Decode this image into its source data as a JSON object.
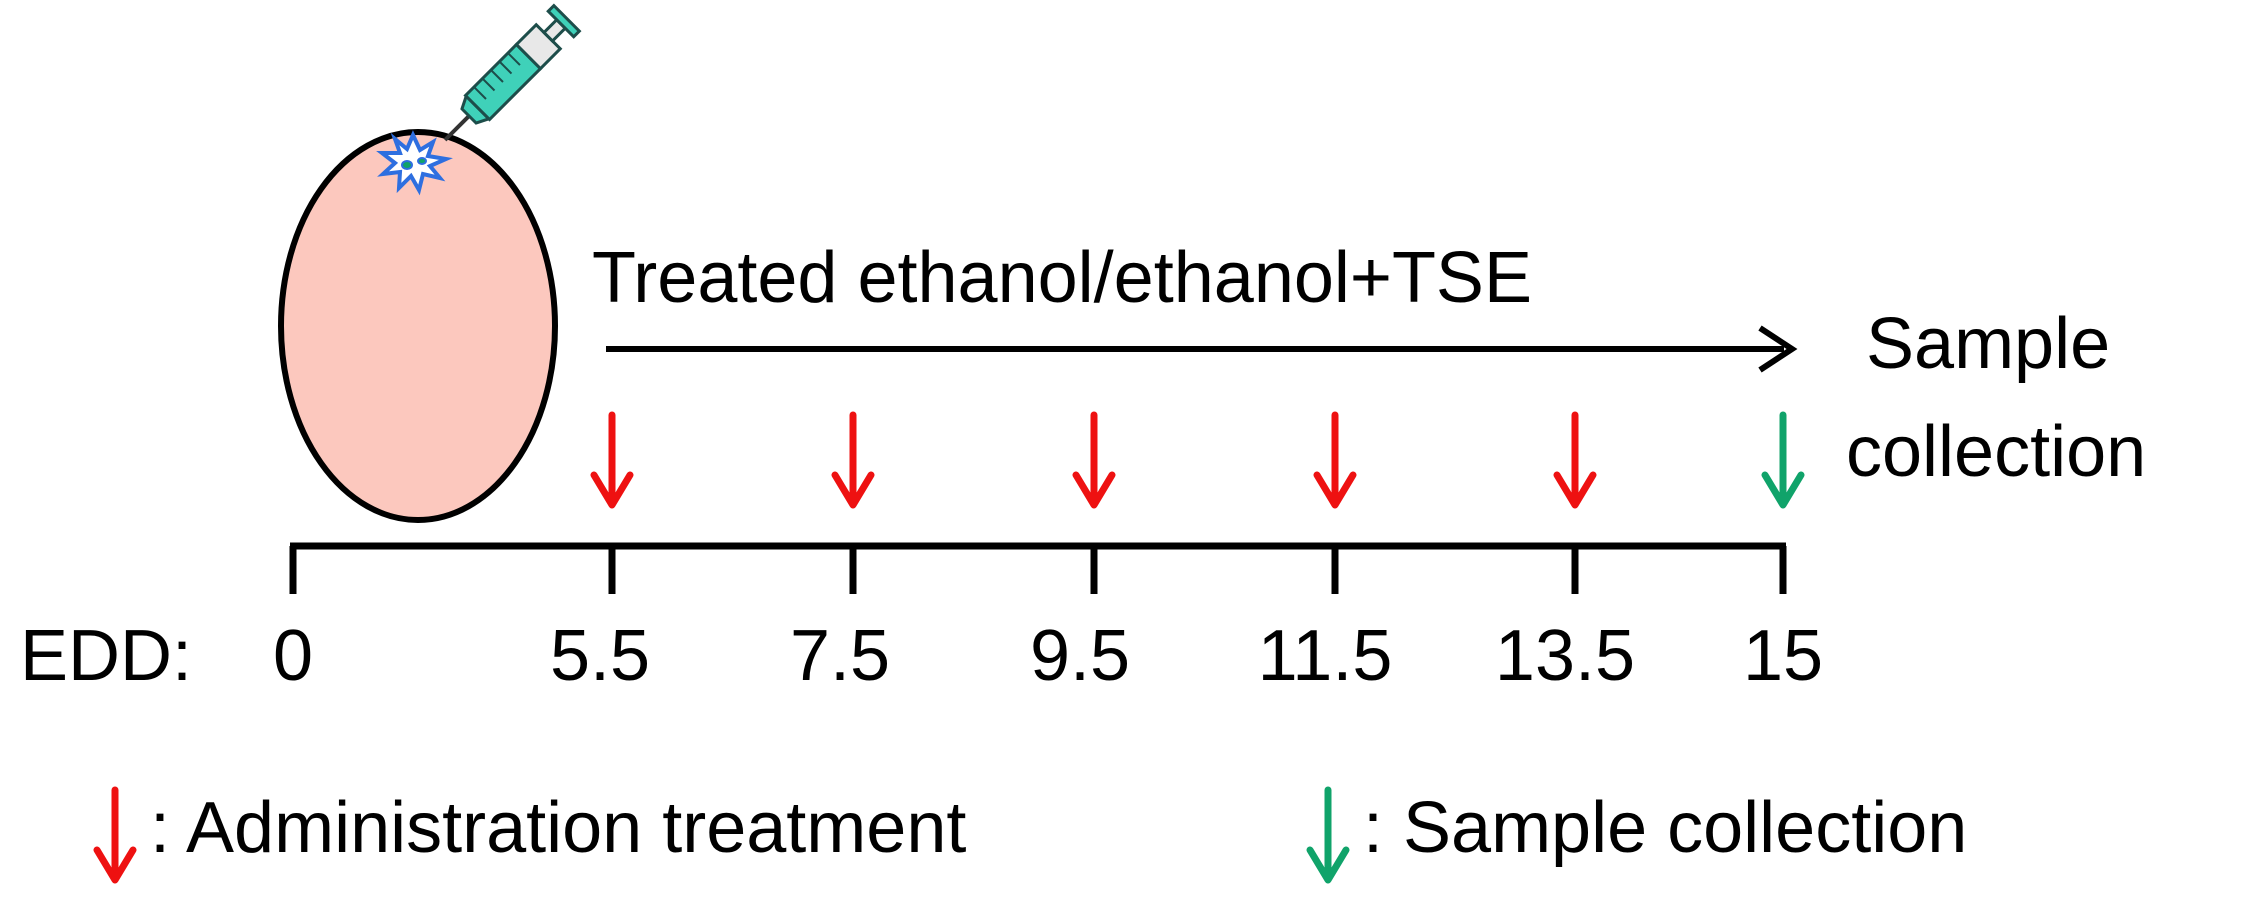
{
  "diagram": {
    "treatment_label": "Treated ethanol/ethanol+TSE",
    "endpoint_label": [
      "Sample",
      "collection"
    ],
    "axis_prefix": "EDD:",
    "timepoints": [
      {
        "value": 0,
        "label": "0",
        "marker": "none"
      },
      {
        "value": 5.5,
        "label": "5.5",
        "marker": "administration"
      },
      {
        "value": 7.5,
        "label": "7.5",
        "marker": "administration"
      },
      {
        "value": 9.5,
        "label": "9.5",
        "marker": "administration"
      },
      {
        "value": 11.5,
        "label": "11.5",
        "marker": "administration"
      },
      {
        "value": 13.5,
        "label": "13.5",
        "marker": "administration"
      },
      {
        "value": 15,
        "label": "15",
        "marker": "sample"
      }
    ],
    "legend": [
      {
        "marker": "administration",
        "label": ": Administration treatment"
      },
      {
        "marker": "sample",
        "label": ": Sample collection"
      }
    ],
    "colors": {
      "administration": "#ee1111",
      "sample": "#10a36a",
      "egg_fill": "#fcc8be",
      "syringe": "#3fd1b9",
      "injection_star": "#2e6fe0"
    },
    "icons": [
      "egg-icon",
      "syringe-icon",
      "injection-burst-icon"
    ]
  }
}
